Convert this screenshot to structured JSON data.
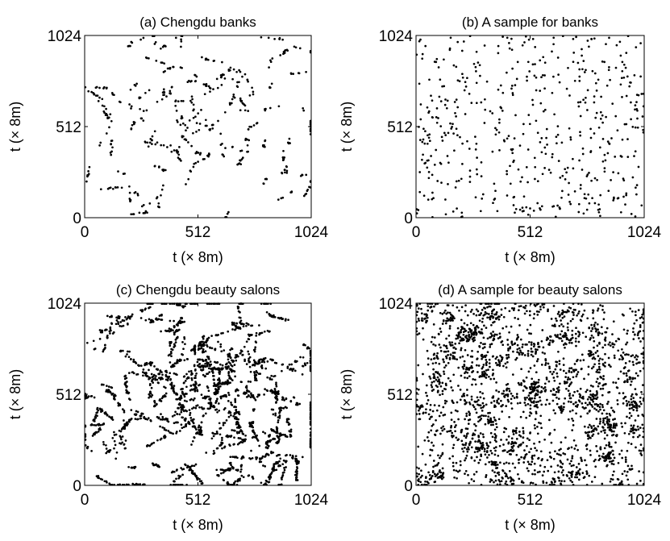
{
  "axis_label": "t (× 8m)",
  "colors": {
    "points": "#000000",
    "axes": "#000000",
    "background": "#ffffff"
  },
  "chart_data": [
    {
      "type": "scatter",
      "title": "(a) Chengdu banks",
      "xlabel": "t (× 8m)",
      "ylabel": "t (× 8m)",
      "xlim": [
        0,
        1024
      ],
      "ylim": [
        0,
        1024
      ],
      "xticks": [
        "0",
        "512",
        "1024"
      ],
      "yticks": [
        "0",
        "512",
        "1024"
      ],
      "grid": false,
      "pattern": "city-banks",
      "point_count": 520
    },
    {
      "type": "scatter",
      "title": "(b) A sample for banks",
      "xlabel": "t (× 8m)",
      "ylabel": "t (× 8m)",
      "xlim": [
        0,
        1024
      ],
      "ylim": [
        0,
        1024
      ],
      "xticks": [
        "0",
        "512",
        "1024"
      ],
      "yticks": [
        "0",
        "512",
        "1024"
      ],
      "grid": false,
      "pattern": "sample-banks",
      "point_count": 520
    },
    {
      "type": "scatter",
      "title": "(c) Chengdu beauty salons",
      "xlabel": "t (× 8m)",
      "ylabel": "t (× 8m)",
      "xlim": [
        0,
        1024
      ],
      "ylim": [
        0,
        1024
      ],
      "xticks": [
        "0",
        "512",
        "1024"
      ],
      "yticks": [
        "0",
        "512",
        "1024"
      ],
      "grid": false,
      "pattern": "city-salons",
      "point_count": 2300
    },
    {
      "type": "scatter",
      "title": "(d) A sample for beauty salons",
      "xlabel": "t (× 8m)",
      "ylabel": "t (× 8m)",
      "xlim": [
        0,
        1024
      ],
      "ylim": [
        0,
        1024
      ],
      "xticks": [
        "0",
        "512",
        "1024"
      ],
      "yticks": [
        "0",
        "512",
        "1024"
      ],
      "grid": false,
      "pattern": "sample-salons",
      "point_count": 2300
    }
  ]
}
